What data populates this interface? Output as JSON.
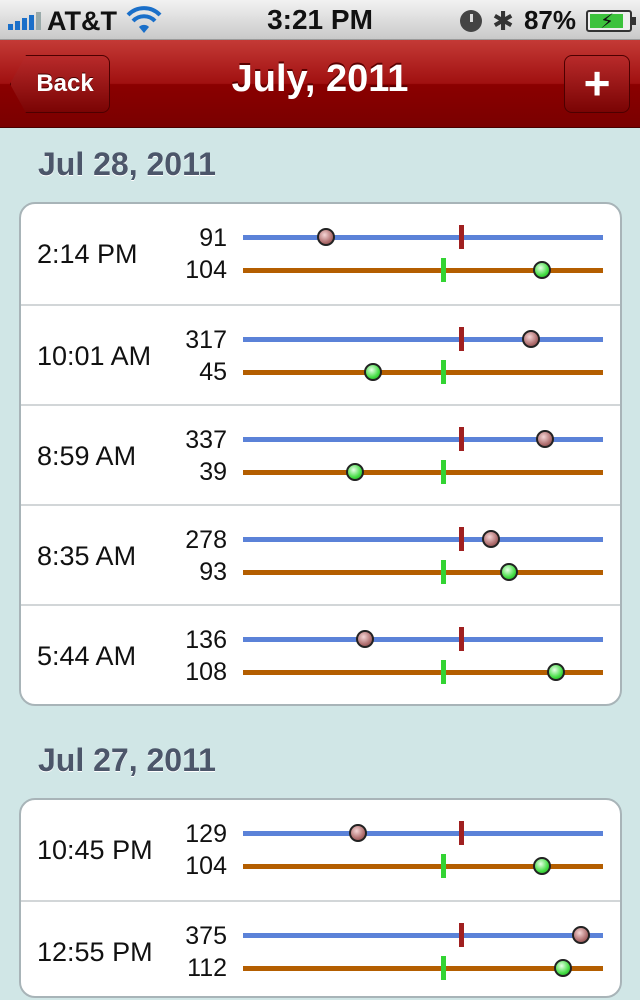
{
  "status_bar": {
    "carrier": "AT&T",
    "time": "3:21 PM",
    "battery_percent": "87%",
    "battery_level": 0.87
  },
  "nav": {
    "title": "July, 2011",
    "back_label": "Back",
    "add_label": "+"
  },
  "scale_note": "Dots placed relative to midpoint markers",
  "sections": [
    {
      "header": "Jul 28, 2011",
      "entries": [
        {
          "time": "2:14 PM",
          "value1": "91",
          "value2": "104",
          "dot1_fraction": 0.23,
          "dot2_fraction": 0.83
        },
        {
          "time": "10:01 AM",
          "value1": "317",
          "value2": "45",
          "dot1_fraction": 0.8,
          "dot2_fraction": 0.36
        },
        {
          "time": "8:59 AM",
          "value1": "337",
          "value2": "39",
          "dot1_fraction": 0.84,
          "dot2_fraction": 0.31
        },
        {
          "time": "8:35 AM",
          "value1": "278",
          "value2": "93",
          "dot1_fraction": 0.69,
          "dot2_fraction": 0.74
        },
        {
          "time": "5:44 AM",
          "value1": "136",
          "value2": "108",
          "dot1_fraction": 0.34,
          "dot2_fraction": 0.87
        }
      ]
    },
    {
      "header": "Jul 27, 2011",
      "entries": [
        {
          "time": "10:45 PM",
          "value1": "129",
          "value2": "104",
          "dot1_fraction": 0.32,
          "dot2_fraction": 0.83
        },
        {
          "time": "12:55 PM",
          "value1": "375",
          "value2": "112",
          "dot1_fraction": 0.94,
          "dot2_fraction": 0.89
        }
      ]
    }
  ],
  "colors": {
    "nav_bar": "#8a0000",
    "background": "#d0e6e6",
    "track_blue": "#5b82d8",
    "track_orange": "#b45e00",
    "marker_red": "#a02020",
    "marker_green": "#33d433"
  }
}
